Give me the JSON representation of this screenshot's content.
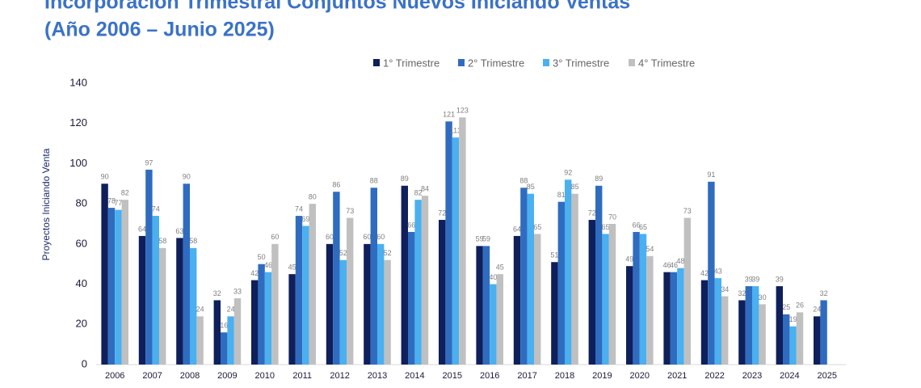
{
  "chart_data": {
    "type": "bar",
    "title": "Incorporación Trimestral Conjuntos Nuevos Iniciando Ventas",
    "subtitle": "(Año 2006 – Junio 2025)",
    "y_label": "Proyectos Iniciando Venta",
    "categories": [
      "2006",
      "2007",
      "2008",
      "2009",
      "2010",
      "2011",
      "2012",
      "2013",
      "2014",
      "2015",
      "2016",
      "2017",
      "2018",
      "2019",
      "2020",
      "2021",
      "2022",
      "2023",
      "2024",
      "2025"
    ],
    "series": [
      {
        "name": "1° Trimestre",
        "color": "#0e1f5b",
        "values": [
          90,
          64,
          63,
          32,
          42,
          45,
          60,
          60,
          89,
          72,
          59,
          64,
          51,
          72,
          49,
          46,
          42,
          32,
          39,
          24
        ]
      },
      {
        "name": "2° Trimestre",
        "color": "#2f6cc0",
        "values": [
          78,
          97,
          90,
          16,
          50,
          74,
          86,
          88,
          66,
          121,
          59,
          88,
          81,
          89,
          66,
          46,
          91,
          39,
          25,
          32
        ]
      },
      {
        "name": "3° Trimestre",
        "color": "#4ab0f0",
        "values": [
          77,
          74,
          58,
          24,
          46,
          69,
          52,
          60,
          82,
          113,
          40,
          85,
          92,
          65,
          65,
          48,
          43,
          39,
          19,
          null
        ]
      },
      {
        "name": "4° Trimestre",
        "color": "#c0c0c0",
        "values": [
          82,
          58,
          24,
          33,
          60,
          80,
          73,
          52,
          84,
          123,
          45,
          65,
          85,
          70,
          54,
          73,
          34,
          30,
          26,
          null
        ]
      }
    ],
    "ylim": [
      0,
      140
    ],
    "yticks": [
      0,
      20,
      40,
      60,
      80,
      100,
      120,
      140
    ],
    "grid": false,
    "legend": "top"
  }
}
